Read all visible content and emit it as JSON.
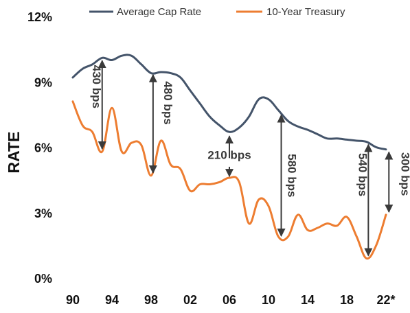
{
  "chart_data": {
    "type": "line",
    "ylabel": "RATE",
    "ylim": [
      0,
      12
    ],
    "yticks": [
      0,
      3,
      6,
      9,
      12
    ],
    "ytick_labels": [
      "0%",
      "3%",
      "6%",
      "9%",
      "12%"
    ],
    "xlim": [
      1990,
      2022.3
    ],
    "xticks": [
      1990,
      1994,
      1998,
      2002,
      2006,
      2010,
      2014,
      2018,
      2022
    ],
    "xtick_labels": [
      "90",
      "94",
      "98",
      "02",
      "06",
      "10",
      "14",
      "18",
      "22*"
    ],
    "legend_position": "top",
    "grid": false,
    "series": [
      {
        "name": "Average Cap Rate",
        "color": "#44546A",
        "x": [
          1990,
          1991,
          1992,
          1993,
          1994,
          1995,
          1996,
          1997,
          1998,
          1999,
          2000,
          2001,
          2002,
          2003,
          2004,
          2005,
          2006,
          2007,
          2008,
          2009,
          2010,
          2011,
          2012,
          2013,
          2014,
          2015,
          2016,
          2017,
          2018,
          2019,
          2020,
          2021,
          2022
        ],
        "y": [
          9.2,
          9.6,
          9.8,
          10.1,
          10.0,
          10.2,
          10.2,
          9.8,
          9.4,
          9.45,
          9.4,
          9.2,
          8.6,
          8.0,
          7.4,
          7.0,
          6.7,
          6.9,
          7.4,
          8.2,
          8.2,
          7.7,
          7.2,
          6.95,
          6.8,
          6.6,
          6.4,
          6.4,
          6.35,
          6.3,
          6.25,
          6.0,
          5.9
        ]
      },
      {
        "name": "10-Year Treasury",
        "color": "#ED7D31",
        "x": [
          1990,
          1991,
          1992,
          1993,
          1994,
          1995,
          1996,
          1997,
          1998,
          1999,
          2000,
          2001,
          2002,
          2003,
          2004,
          2005,
          2006,
          2007,
          2008,
          2009,
          2010,
          2011,
          2012,
          2013,
          2014,
          2015,
          2016,
          2017,
          2018,
          2019,
          2020,
          2021,
          2022
        ],
        "y": [
          8.1,
          7.0,
          6.7,
          5.8,
          7.8,
          5.8,
          6.2,
          6.1,
          4.7,
          6.3,
          5.2,
          5.0,
          4.0,
          4.3,
          4.3,
          4.4,
          4.6,
          4.4,
          2.5,
          3.6,
          3.3,
          1.9,
          1.9,
          2.9,
          2.2,
          2.3,
          2.5,
          2.4,
          2.8,
          1.9,
          0.9,
          1.5,
          2.9
        ]
      }
    ],
    "annotations": [
      {
        "label": "430 bps",
        "x": 1993,
        "y_top": 10.1,
        "y_bottom": 5.8
      },
      {
        "label": "480 bps",
        "x": 1998.2,
        "y_top": 9.45,
        "y_bottom": 4.7
      },
      {
        "label": "210 bps",
        "x": 2006,
        "y_top": 6.7,
        "y_bottom": 4.6
      },
      {
        "label": "580 bps",
        "x": 2011.3,
        "y_top": 7.6,
        "y_bottom": 1.8
      },
      {
        "label": "540 bps",
        "x": 2020.2,
        "y_top": 6.25,
        "y_bottom": 0.9
      },
      {
        "label": "300 bps",
        "x": 2022.3,
        "y_top": 5.9,
        "y_bottom": 2.9
      }
    ]
  }
}
